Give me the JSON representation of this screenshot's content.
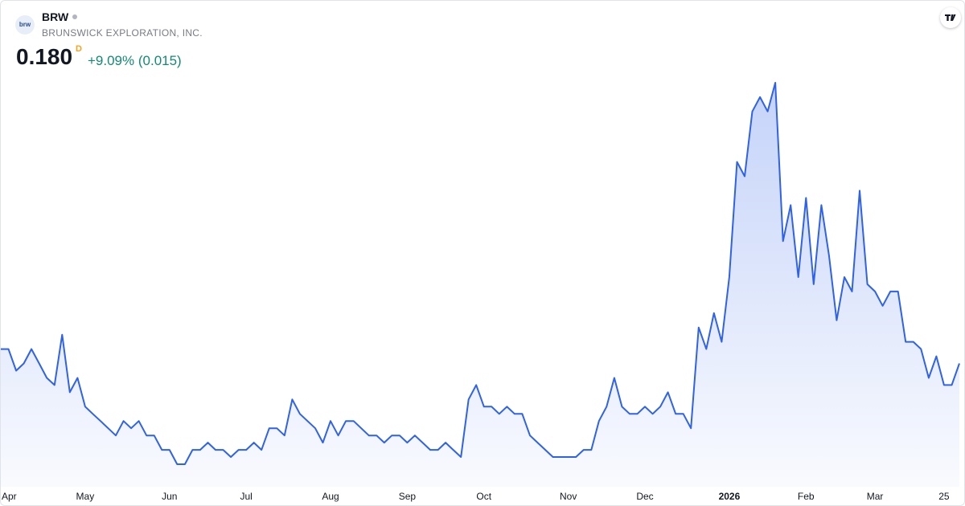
{
  "header": {
    "logo": "brw",
    "symbol": "BRW",
    "name": "BRUNSWICK EXPLORATION, INC.",
    "price": "0.180",
    "interval": "D",
    "change": "+9.09% (0.015)"
  },
  "chart_data": {
    "type": "area",
    "color": "#2f62ea",
    "categories": [
      "Apr",
      null,
      null,
      null,
      null,
      null,
      null,
      null,
      null,
      null,
      null,
      "May",
      null,
      null,
      null,
      null,
      null,
      null,
      null,
      null,
      null,
      null,
      "Jun",
      null,
      null,
      null,
      null,
      null,
      null,
      null,
      null,
      null,
      "Jul",
      null,
      null,
      null,
      null,
      null,
      null,
      null,
      null,
      null,
      null,
      "Aug",
      null,
      null,
      null,
      null,
      null,
      null,
      null,
      null,
      null,
      "Sep",
      null,
      null,
      null,
      null,
      null,
      null,
      null,
      null,
      null,
      "Oct",
      null,
      null,
      null,
      null,
      null,
      null,
      null,
      null,
      null,
      null,
      "Nov",
      null,
      null,
      null,
      null,
      null,
      null,
      null,
      null,
      null,
      "Dec",
      null,
      null,
      null,
      null,
      null,
      null,
      null,
      null,
      null,
      null,
      "2026",
      null,
      null,
      null,
      null,
      null,
      null,
      null,
      null,
      null,
      "Feb",
      null,
      null,
      null,
      null,
      null,
      null,
      null,
      null,
      "Mar",
      null,
      null,
      null,
      null,
      null,
      null,
      null,
      null,
      "25",
      null,
      null
    ],
    "values": [
      0.19,
      0.19,
      0.175,
      0.18,
      0.19,
      0.18,
      0.17,
      0.165,
      0.2,
      0.16,
      0.17,
      0.15,
      0.145,
      0.14,
      0.135,
      0.13,
      0.14,
      0.135,
      0.14,
      0.13,
      0.13,
      0.12,
      0.12,
      0.11,
      0.11,
      0.12,
      0.12,
      0.125,
      0.12,
      0.12,
      0.115,
      0.12,
      0.12,
      0.125,
      0.12,
      0.135,
      0.135,
      0.13,
      0.155,
      0.145,
      0.14,
      0.135,
      0.125,
      0.14,
      0.13,
      0.14,
      0.14,
      0.135,
      0.13,
      0.13,
      0.125,
      0.13,
      0.13,
      0.125,
      0.13,
      0.125,
      0.12,
      0.12,
      0.125,
      0.12,
      0.115,
      0.155,
      0.165,
      0.15,
      0.15,
      0.145,
      0.15,
      0.145,
      0.145,
      0.13,
      0.125,
      0.12,
      0.115,
      0.115,
      0.115,
      0.115,
      0.12,
      0.12,
      0.14,
      0.15,
      0.17,
      0.15,
      0.145,
      0.145,
      0.15,
      0.145,
      0.15,
      0.16,
      0.145,
      0.145,
      0.135,
      0.205,
      0.19,
      0.215,
      0.195,
      0.24,
      0.32,
      0.31,
      0.355,
      0.365,
      0.355,
      0.375,
      0.265,
      0.29,
      0.24,
      0.295,
      0.235,
      0.29,
      0.255,
      0.21,
      0.24,
      0.23,
      0.3,
      0.235,
      0.23,
      0.22,
      0.23,
      0.23,
      0.195,
      0.195,
      0.19,
      0.17,
      0.185,
      0.165,
      0.165,
      0.18
    ]
  }
}
